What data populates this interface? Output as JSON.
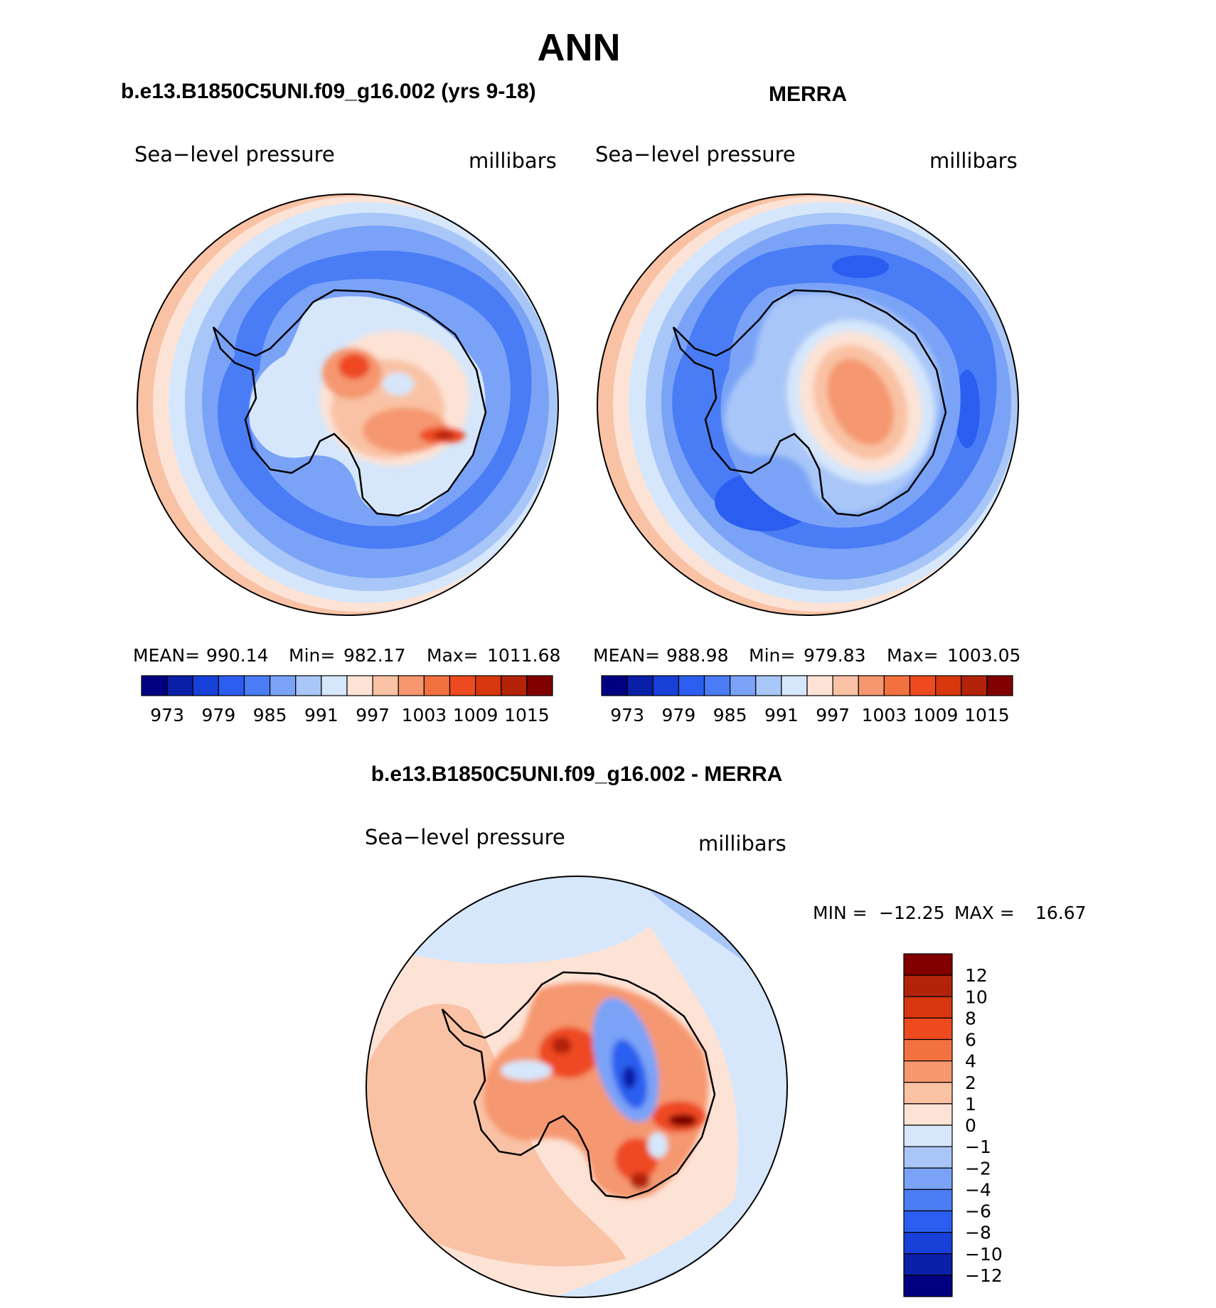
{
  "chart_data": [
    {
      "type": "heatmap",
      "panel": "model",
      "projection": "south-polar-stereographic",
      "title": "b.e13.B1850C5UNI.f09_g16.002 (yrs 9-18)",
      "variable_label": "Sea−level pressure",
      "units": "millibars",
      "stats": [
        {
          "label": "MEAN=",
          "value": "990.14"
        },
        {
          "label": "Min=",
          "value": "982.17"
        },
        {
          "label": "Max=",
          "value": "1011.68"
        }
      ],
      "colorbar": {
        "orientation": "horizontal",
        "levels": [
          973,
          976,
          979,
          982,
          985,
          988,
          991,
          994,
          997,
          1000,
          1003,
          1006,
          1009,
          1012,
          1015
        ],
        "tick_labels": [
          "973",
          "979",
          "985",
          "991",
          "997",
          "1003",
          "1009",
          "1015"
        ],
        "colors": [
          "#000080",
          "#0a1fa8",
          "#1740d8",
          "#2b5ef0",
          "#4a7cf5",
          "#7aa3f7",
          "#a9c6f8",
          "#d6e7fb",
          "#fde3d6",
          "#f9c2a4",
          "#f5976f",
          "#f2713e",
          "#ee4a20",
          "#d8360c",
          "#b3230a",
          "#800000"
        ]
      }
    },
    {
      "type": "heatmap",
      "panel": "observations",
      "projection": "south-polar-stereographic",
      "title": "MERRA",
      "variable_label": "Sea−level pressure",
      "units": "millibars",
      "stats": [
        {
          "label": "MEAN=",
          "value": "988.98"
        },
        {
          "label": "Min=",
          "value": "979.83"
        },
        {
          "label": "Max=",
          "value": "1003.05"
        }
      ],
      "colorbar": {
        "orientation": "horizontal",
        "levels": [
          973,
          976,
          979,
          982,
          985,
          988,
          991,
          994,
          997,
          1000,
          1003,
          1006,
          1009,
          1012,
          1015
        ],
        "tick_labels": [
          "973",
          "979",
          "985",
          "991",
          "997",
          "1003",
          "1009",
          "1015"
        ],
        "colors": [
          "#000080",
          "#0a1fa8",
          "#1740d8",
          "#2b5ef0",
          "#4a7cf5",
          "#7aa3f7",
          "#a9c6f8",
          "#d6e7fb",
          "#fde3d6",
          "#f9c2a4",
          "#f5976f",
          "#f2713e",
          "#ee4a20",
          "#d8360c",
          "#b3230a",
          "#800000"
        ]
      }
    },
    {
      "type": "heatmap",
      "panel": "difference",
      "projection": "south-polar-stereographic",
      "title": "b.e13.B1850C5UNI.f09_g16.002 - MERRA",
      "variable_label": "Sea−level pressure",
      "units": "millibars",
      "stats_text": {
        "min_label": "MIN =",
        "min": "−12.25",
        "max_label": "MAX =",
        "max": "16.67"
      },
      "colorbar": {
        "orientation": "vertical",
        "levels": [
          12,
          10,
          8,
          6,
          4,
          2,
          1,
          0,
          -1,
          -2,
          -4,
          -6,
          -8,
          -10,
          -12
        ],
        "tick_labels": [
          "12",
          "10",
          "8",
          "6",
          "4",
          "2",
          "1",
          "0",
          "−1",
          "−2",
          "−4",
          "−6",
          "−8",
          "−10",
          "−12"
        ],
        "colors": [
          "#800000",
          "#b3230a",
          "#d8360c",
          "#ee4a20",
          "#f2713e",
          "#f5976f",
          "#f9c2a4",
          "#fde3d6",
          "#d6e7fb",
          "#a9c6f8",
          "#7aa3f7",
          "#4a7cf5",
          "#2b5ef0",
          "#1740d8",
          "#0a1fa8",
          "#000080"
        ]
      }
    }
  ],
  "page": {
    "title": "ANN"
  }
}
